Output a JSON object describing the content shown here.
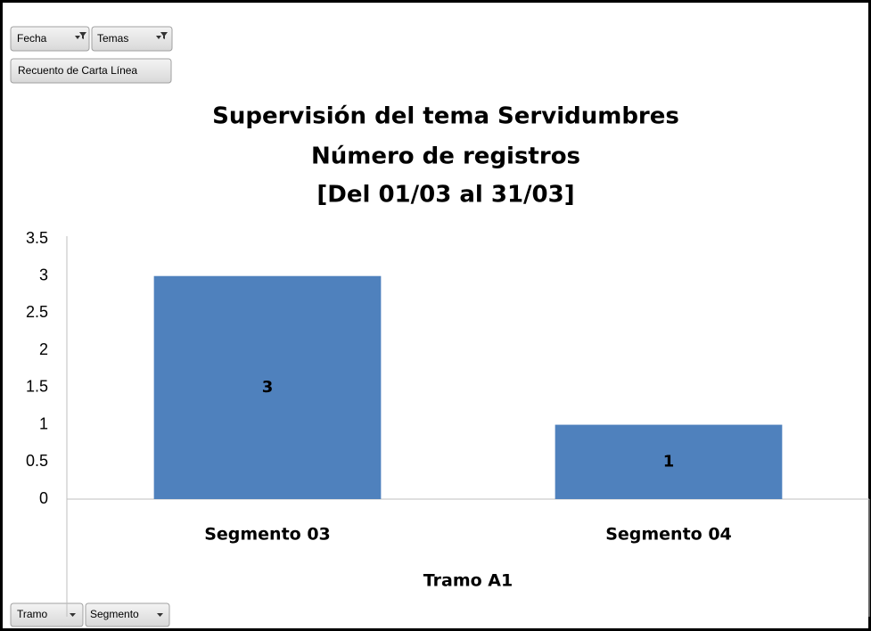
{
  "chart_data": {
    "type": "bar",
    "title": [
      "Supervisión del tema Servidumbres",
      "Número de registros",
      "[Del 01/03 al 31/03]"
    ],
    "categories": [
      "Segmento 03",
      "Segmento 04"
    ],
    "x_group_label": "Tramo A1",
    "values": [
      3,
      1
    ],
    "color": "#4f81bd",
    "ylim": [
      0,
      3.5
    ],
    "yticks": [
      0,
      0.5,
      1,
      1.5,
      2,
      2.5,
      3,
      3.5
    ]
  },
  "filter_buttons": [
    "Fecha",
    "Temas"
  ],
  "value_button": "Recuento de Carta Línea",
  "axis_buttons": [
    "Tramo",
    "Segmento"
  ]
}
